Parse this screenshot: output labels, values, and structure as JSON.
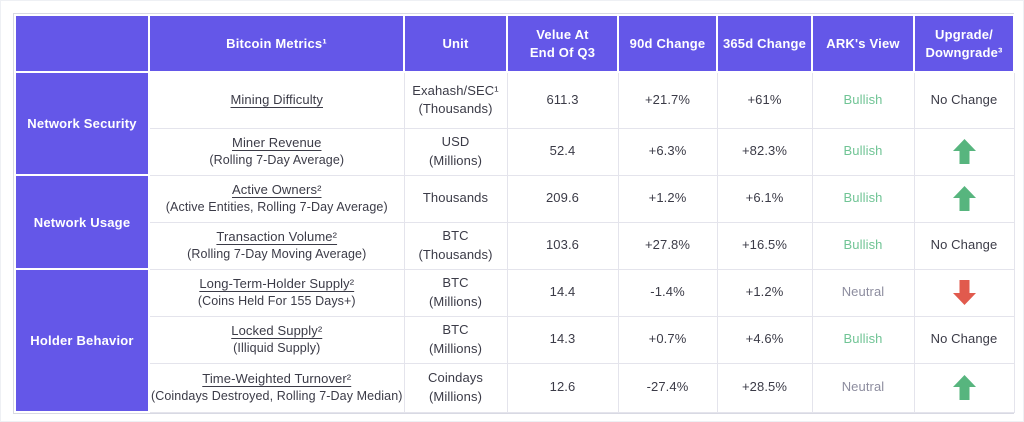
{
  "colors": {
    "header_purple": "#6457e8",
    "bullish_green": "#70c495",
    "neutral_gray": "#8d8d9f",
    "arrow_up_green": "#57b57e",
    "arrow_down_red": "#e15a4d"
  },
  "table": {
    "headers": [
      "",
      "Bitcoin Metrics¹",
      "Unit",
      "Velue At\nEnd Of Q3",
      "90d Change",
      "365d Change",
      "ARK's View",
      "Upgrade/\nDowngrade³"
    ],
    "groups": [
      {
        "label": "Network Security",
        "span": 2
      },
      {
        "label": "Network Usage",
        "span": 2
      },
      {
        "label": "Holder Behavior",
        "span": 3
      }
    ],
    "rows": [
      {
        "metric": "Mining Difficulty",
        "metric_sub": "",
        "unit": "Exahash/SEC¹\n(Thousands)",
        "value": "611.3",
        "change_90d": "+21.7%",
        "change_365d": "+61%",
        "ark_view": "Bullish",
        "upgrade_type": "text",
        "upgrade_label": "No Change"
      },
      {
        "metric": "Miner Revenue",
        "metric_sub": "(Rolling 7-Day Average)",
        "unit": "USD\n(Millions)",
        "value": "52.4",
        "change_90d": "+6.3%",
        "change_365d": "+82.3%",
        "ark_view": "Bullish",
        "upgrade_type": "arrow-up",
        "upgrade_label": ""
      },
      {
        "metric": "Active Owners²",
        "metric_sub": "(Active Entities, Rolling 7-Day Average)",
        "unit": "Thousands",
        "value": "209.6",
        "change_90d": "+1.2%",
        "change_365d": "+6.1%",
        "ark_view": "Bullish",
        "upgrade_type": "arrow-up",
        "upgrade_label": ""
      },
      {
        "metric": "Transaction Volume²",
        "metric_sub": "(Rolling 7-Day Moving Average)",
        "unit": "BTC\n(Thousands)",
        "value": "103.6",
        "change_90d": "+27.8%",
        "change_365d": "+16.5%",
        "ark_view": "Bullish",
        "upgrade_type": "text",
        "upgrade_label": "No Change"
      },
      {
        "metric": "Long-Term-Holder Supply²",
        "metric_sub": "(Coins Held For 155 Days+)",
        "unit": "BTC\n(Millions)",
        "value": "14.4",
        "change_90d": "-1.4%",
        "change_365d": "+1.2%",
        "ark_view": "Neutral",
        "upgrade_type": "arrow-down",
        "upgrade_label": ""
      },
      {
        "metric": "Locked Supply²",
        "metric_sub": "(Illiquid Supply)",
        "unit": "BTC\n(Millions)",
        "value": "14.3",
        "change_90d": "+0.7%",
        "change_365d": "+4.6%",
        "ark_view": "Bullish",
        "upgrade_type": "text",
        "upgrade_label": "No Change"
      },
      {
        "metric": "Time-Weighted Turnover²",
        "metric_sub": "(Coindays Destroyed, Rolling 7-Day Median)",
        "unit": "Coindays\n(Millions)",
        "value": "12.6",
        "change_90d": "-27.4%",
        "change_365d": "+28.5%",
        "ark_view": "Neutral",
        "upgrade_type": "arrow-up",
        "upgrade_label": ""
      }
    ]
  }
}
